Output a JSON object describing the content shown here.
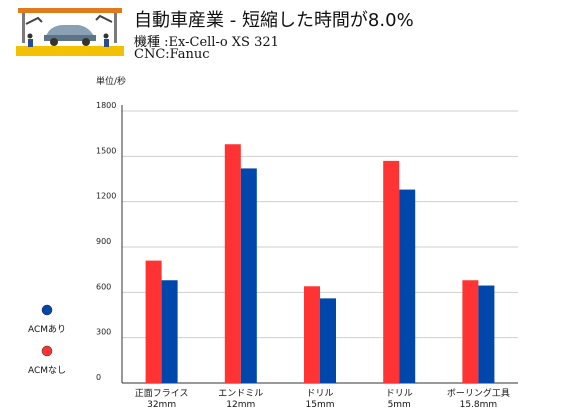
{
  "header": {
    "title": "自動車産業 - 短縮した時間が8.0%",
    "machine": "機種 :Ex-Cell-o XS 321",
    "controller": "CNC:Fanuc",
    "illustration": "car-assembly-line-icon"
  },
  "colors": {
    "without_acm": "#ff3333",
    "with_acm": "#0047ab",
    "grid": "#cfcfcf",
    "axis": "#333333"
  },
  "chart_data": {
    "type": "bar",
    "ylabel": "単位/秒",
    "ylim": [
      0,
      1800
    ],
    "yticks": [
      0,
      300,
      600,
      900,
      1200,
      1500,
      1800
    ],
    "grid": true,
    "legend_position": "left",
    "categories": [
      {
        "name": "正面フライス",
        "size": "32mm"
      },
      {
        "name": "エンドミル",
        "size": "12mm"
      },
      {
        "name": "ドリル",
        "size": "15mm"
      },
      {
        "name": "ドリル",
        "size": "5mm"
      },
      {
        "name": "ボーリング工具",
        "size": "15.8mm"
      }
    ],
    "series": [
      {
        "name": "ACMなし",
        "color": "#ff3333",
        "values": [
          810,
          1580,
          640,
          1470,
          680
        ]
      },
      {
        "name": "ACMあり",
        "color": "#0047ab",
        "values": [
          680,
          1420,
          560,
          1280,
          645
        ]
      }
    ]
  }
}
